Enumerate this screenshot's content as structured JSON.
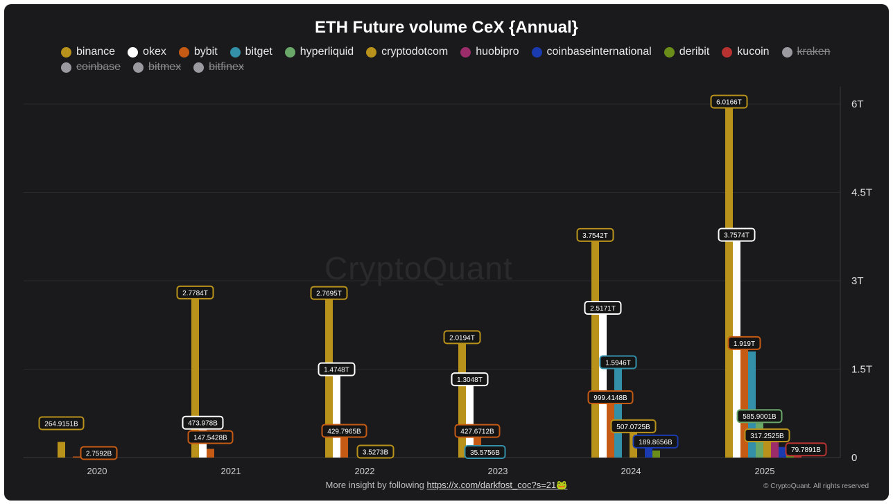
{
  "chart_data": {
    "type": "bar",
    "title": "ETH Future volume CeX {Annual}",
    "categories": [
      "2020",
      "2021",
      "2022",
      "2023",
      "2024",
      "2025"
    ],
    "ylim": [
      0,
      6.3
    ],
    "y_ticks": [
      0,
      1.5,
      3,
      4.5,
      6
    ],
    "y_tick_labels": [
      "0",
      "1.5T",
      "3T",
      "4.5T",
      "6T"
    ],
    "y_axis_side": "right",
    "grid": true,
    "legend_position": "top",
    "series": [
      {
        "name": "binance",
        "color": "#b8921a",
        "values": [
          0.2649,
          2.7784,
          2.7695,
          2.0194,
          3.7542,
          6.0166
        ],
        "labels": [
          "264.9151B",
          "2.7784T",
          "2.7695T",
          "2.0194T",
          "3.7542T",
          "6.0166T"
        ]
      },
      {
        "name": "okex",
        "color": "#ffffff",
        "values": [
          0,
          0.474,
          1.4748,
          1.3048,
          2.5171,
          3.7574
        ],
        "labels": [
          "",
          "473.978B",
          "1.4748T",
          "1.3048T",
          "2.5171T",
          "3.7574T"
        ]
      },
      {
        "name": "bybit",
        "color": "#c55a14",
        "values": [
          0.0028,
          0.1475,
          0.4298,
          0.4277,
          0.9994,
          1.919
        ],
        "labels": [
          "2.7592B",
          "147.5428B",
          "429.7965B",
          "427.6712B",
          "999.4148B",
          "1.919T"
        ]
      },
      {
        "name": "bitget",
        "color": "#3390a8",
        "values": [
          0,
          0,
          0,
          0.0358,
          1.5946,
          1.8
        ],
        "labels": [
          "",
          "",
          "",
          "35.5756B",
          "1.5946T",
          ""
        ]
      },
      {
        "name": "hyperliquid",
        "color": "#6aa86a",
        "values": [
          0,
          0,
          0,
          0,
          0,
          0.5859
        ],
        "labels": [
          "",
          "",
          "",
          "",
          "",
          "585.9001B"
        ]
      },
      {
        "name": "cryptodotcom",
        "color": "#b8921a",
        "values": [
          0,
          0,
          0.0035,
          0,
          0.5071,
          0.3173
        ],
        "labels": [
          "",
          "",
          "3.5273B",
          "",
          "507.0725B",
          "317.2525B"
        ]
      },
      {
        "name": "huobipro",
        "color": "#9c2d6a",
        "values": [
          0,
          0,
          0,
          0,
          0,
          0.3
        ],
        "labels": [
          "",
          "",
          "",
          "",
          "",
          ""
        ]
      },
      {
        "name": "coinbaseinternational",
        "color": "#1a3bb0",
        "values": [
          0,
          0,
          0,
          0,
          0.1899,
          0.18
        ],
        "labels": [
          "",
          "",
          "",
          "",
          "189.8656B",
          ""
        ]
      },
      {
        "name": "deribit",
        "color": "#6b8e1a",
        "values": [
          0,
          0,
          0,
          0,
          0.12,
          0.1
        ],
        "labels": [
          "",
          "",
          "",
          "",
          "",
          ""
        ]
      },
      {
        "name": "kucoin",
        "color": "#b83232",
        "values": [
          0,
          0,
          0,
          0,
          0,
          0.0798
        ],
        "labels": [
          "",
          "",
          "",
          "",
          "",
          "79.7891B"
        ]
      }
    ],
    "hidden_series": [
      "kraken",
      "coinbase",
      "bitmex",
      "bitfinex"
    ]
  },
  "legend": {
    "items": [
      {
        "label": "binance",
        "color": "#b8921a",
        "hidden": false
      },
      {
        "label": "okex",
        "color": "#ffffff",
        "hidden": false
      },
      {
        "label": "bybit",
        "color": "#c55a14",
        "hidden": false
      },
      {
        "label": "bitget",
        "color": "#3390a8",
        "hidden": false
      },
      {
        "label": "hyperliquid",
        "color": "#6aa86a",
        "hidden": false
      },
      {
        "label": "cryptodotcom",
        "color": "#b8921a",
        "hidden": false
      },
      {
        "label": "huobipro",
        "color": "#9c2d6a",
        "hidden": false
      },
      {
        "label": "coinbaseinternational",
        "color": "#1a3bb0",
        "hidden": false
      },
      {
        "label": "deribit",
        "color": "#6b8e1a",
        "hidden": false
      },
      {
        "label": "kucoin",
        "color": "#b83232",
        "hidden": false
      },
      {
        "label": "kraken",
        "color": "#9a9aa0",
        "hidden": true
      },
      {
        "label": "coinbase",
        "color": "#9a9aa0",
        "hidden": true
      },
      {
        "label": "bitmex",
        "color": "#9a9aa0",
        "hidden": true
      },
      {
        "label": "bitfinex",
        "color": "#9a9aa0",
        "hidden": true
      }
    ]
  },
  "watermark": "CryptoQuant",
  "footer": {
    "text": "More insight by following ",
    "link_text": "https://x.com/darkfost_coc?s=21🐸",
    "copyright": "© CryptoQuant. All rights reserved"
  }
}
